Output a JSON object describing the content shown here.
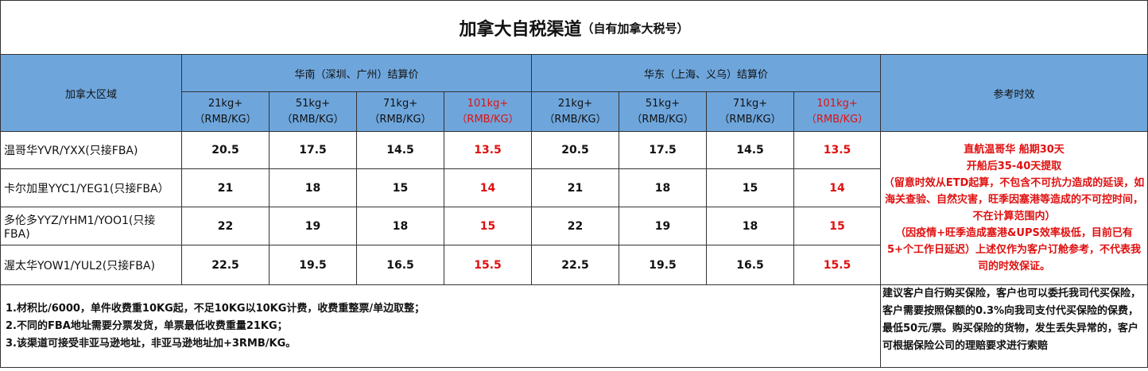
{
  "header": {
    "title": "加拿大自税渠道",
    "subtitle": "（自有加拿大税号）"
  },
  "table": {
    "region_header": "加拿大区域",
    "groups": [
      "华南（深圳、广州）结算价",
      "华东（上海、义乌）结算价"
    ],
    "price_columns": [
      {
        "weight": "21kg+",
        "unit": "（RMB/KG）"
      },
      {
        "weight": "51kg+",
        "unit": "（RMB/KG）"
      },
      {
        "weight": "71kg+",
        "unit": "（RMB/KG）"
      },
      {
        "weight": "101kg+",
        "unit": "（RMB/KG）"
      },
      {
        "weight": "21kg+",
        "unit": "（RMB/KG）"
      },
      {
        "weight": "51kg+",
        "unit": "（RMB/KG）"
      },
      {
        "weight": "71kg+",
        "unit": "（RMB/KG）"
      },
      {
        "weight": "101kg+",
        "unit": "（RMB/KG）"
      }
    ],
    "ref_header": "参考时效",
    "rows": [
      {
        "region": "温哥华YVR/YXX(只接FBA)",
        "prices": [
          20.5,
          17.5,
          14.5,
          13.5,
          20.5,
          17.5,
          14.5,
          13.5
        ]
      },
      {
        "region": "卡尔加里YYC1/YEG1(只接FBA）",
        "prices": [
          21,
          18,
          15,
          14,
          21,
          18,
          15,
          14
        ]
      },
      {
        "region": "多伦多YYZ/YHM1/YOO1(只接FBA)",
        "prices": [
          22,
          19,
          18,
          15,
          22,
          19,
          18,
          15
        ]
      },
      {
        "region": "渥太华YOW1/YUL2(只接FBA)",
        "prices": [
          22.5,
          19.5,
          16.5,
          15.5,
          22.5,
          19.5,
          16.5,
          15.5
        ]
      }
    ],
    "ref_notes": [
      "直航温哥华 船期30天",
      "开船后35-40天提取",
      "（留意时效从ETD起算，不包含不可抗力造成的延误，如海关查验、自然灾害，旺季因塞港等造成的不可控时间，不在计算范围内）",
      "（因疫情+旺季造成塞港&UPS效率极低，目前已有5+个工作日延迟）上述仅作为客户订舱参考，不代表我司的时效保证。"
    ]
  },
  "footer": {
    "notes": [
      "1.材积比/6000，单件收费重10KG起，不足10KG以10KG计费，收费重整票/单边取整；",
      "2.不同的FBA地址需要分票发货，单票最低收费重量21KG；",
      "3.该渠道可接受非亚马逊地址，非亚马逊地址加+3RMB/KG。"
    ],
    "insurance": "建议客户自行购买保险，客户也可以委托我司代买保险，客户需要按照保额的0.3%向我司支付代买保险的保费，最低50元/票。购买保险的货物，发生丢失异常的，客户可根据保险公司的理赔要求进行索赔"
  }
}
